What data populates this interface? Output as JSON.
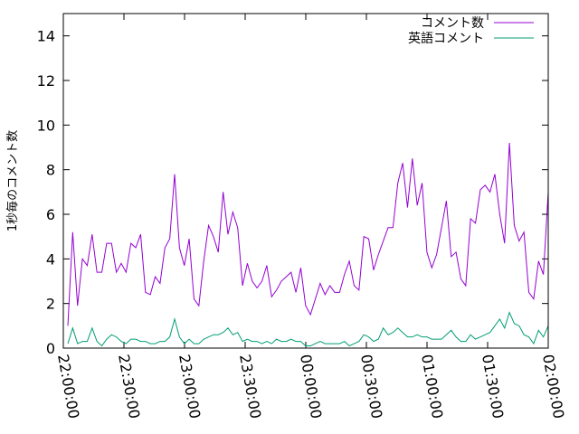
{
  "chart_data": {
    "type": "line",
    "title": "",
    "xlabel": "",
    "ylabel": "1秒毎のコメント数",
    "ylim": [
      0,
      15
    ],
    "yticks": [
      "0",
      "2",
      "4",
      "6",
      "8",
      "10",
      "12",
      "14"
    ],
    "xlim": [
      "22:00:00",
      "02:00:00"
    ],
    "xticks": [
      "22:00:00",
      "22:30:00",
      "23:00:00",
      "23:30:00",
      "00:00:00",
      "00:30:00",
      "01:00:00",
      "01:30:00",
      "02:00:00"
    ],
    "grid": false,
    "legend": "top-right",
    "series": [
      {
        "name": "コメント数",
        "color": "#9400d3",
        "values": [
          1.0,
          5.2,
          1.9,
          4.0,
          3.7,
          5.1,
          3.4,
          3.4,
          4.7,
          4.7,
          3.4,
          3.8,
          3.4,
          4.7,
          4.5,
          5.1,
          2.5,
          2.4,
          3.2,
          2.9,
          4.5,
          4.9,
          7.8,
          4.5,
          3.7,
          4.9,
          2.2,
          1.9,
          3.9,
          5.5,
          5.0,
          4.3,
          7.0,
          5.1,
          6.1,
          5.4,
          2.8,
          3.8,
          3.0,
          2.7,
          3.0,
          3.7,
          2.3,
          2.6,
          3.0,
          3.2,
          3.4,
          2.5,
          3.6,
          1.9,
          1.5,
          2.2,
          2.9,
          2.4,
          2.8,
          2.5,
          2.5,
          3.3,
          3.9,
          2.8,
          2.6,
          5.0,
          4.9,
          3.5,
          4.2,
          4.8,
          5.4,
          5.4,
          7.4,
          8.3,
          6.3,
          8.5,
          6.4,
          7.4,
          4.3,
          3.6,
          4.2,
          5.4,
          6.6,
          4.1,
          4.3,
          3.1,
          2.8,
          5.8,
          5.6,
          7.1,
          7.3,
          7.0,
          7.8,
          6.0,
          4.7,
          9.2,
          5.5,
          4.8,
          5.2,
          2.5,
          2.2,
          3.9,
          3.3,
          7.0
        ]
      },
      {
        "name": "英語コメント",
        "color": "#009e73",
        "values": [
          0.2,
          0.9,
          0.2,
          0.3,
          0.3,
          0.9,
          0.3,
          0.1,
          0.4,
          0.6,
          0.5,
          0.3,
          0.2,
          0.4,
          0.4,
          0.3,
          0.3,
          0.2,
          0.2,
          0.3,
          0.3,
          0.5,
          1.3,
          0.5,
          0.2,
          0.4,
          0.2,
          0.2,
          0.4,
          0.5,
          0.6,
          0.6,
          0.7,
          0.9,
          0.6,
          0.7,
          0.3,
          0.4,
          0.3,
          0.3,
          0.2,
          0.3,
          0.2,
          0.4,
          0.3,
          0.3,
          0.4,
          0.3,
          0.3,
          0.1,
          0.1,
          0.2,
          0.3,
          0.2,
          0.2,
          0.2,
          0.2,
          0.3,
          0.1,
          0.2,
          0.3,
          0.6,
          0.5,
          0.3,
          0.4,
          0.9,
          0.6,
          0.7,
          0.9,
          0.7,
          0.5,
          0.5,
          0.6,
          0.5,
          0.5,
          0.4,
          0.4,
          0.4,
          0.6,
          0.8,
          0.5,
          0.3,
          0.3,
          0.6,
          0.4,
          0.5,
          0.6,
          0.7,
          1.0,
          1.3,
          0.9,
          1.6,
          1.1,
          1.0,
          0.6,
          0.5,
          0.2,
          0.8,
          0.5,
          1.0
        ]
      }
    ]
  }
}
